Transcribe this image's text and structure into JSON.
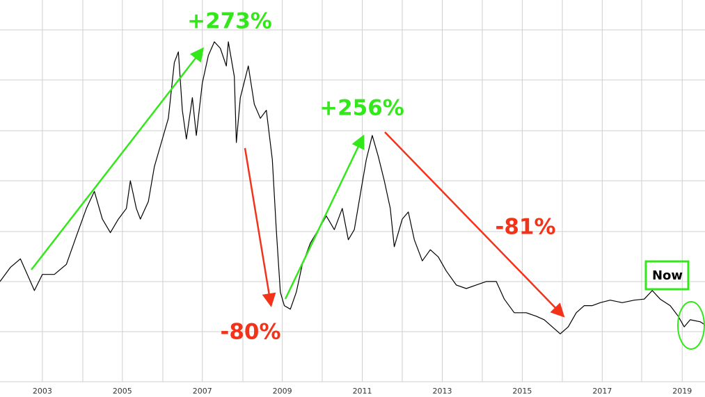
{
  "chart_data": {
    "type": "line",
    "x": [
      2001.94,
      2002.2,
      2002.45,
      2002.7,
      2002.8,
      2003.0,
      2003.3,
      2003.6,
      2003.85,
      2004.1,
      2004.3,
      2004.5,
      2004.7,
      2004.9,
      2005.1,
      2005.2,
      2005.35,
      2005.45,
      2005.65,
      2005.8,
      2005.95,
      2006.15,
      2006.3,
      2006.4,
      2006.5,
      2006.6,
      2006.75,
      2006.85,
      2007.0,
      2007.15,
      2007.3,
      2007.45,
      2007.6,
      2007.65,
      2007.8,
      2007.85,
      2007.95,
      2008.15,
      2008.3,
      2008.45,
      2008.6,
      2008.75,
      2008.85,
      2008.95,
      2009.05,
      2009.2,
      2009.35,
      2009.5,
      2009.7,
      2009.9,
      2010.1,
      2010.3,
      2010.5,
      2010.65,
      2010.8,
      2010.95,
      2011.1,
      2011.25,
      2011.4,
      2011.55,
      2011.7,
      2011.8,
      2012.0,
      2012.15,
      2012.3,
      2012.5,
      2012.7,
      2012.9,
      2013.1,
      2013.35,
      2013.6,
      2013.85,
      2014.1,
      2014.35,
      2014.55,
      2014.8,
      2015.1,
      2015.35,
      2015.55,
      2015.75,
      2015.95,
      2016.15,
      2016.35,
      2016.55,
      2016.75,
      2016.95,
      2017.2,
      2017.5,
      2017.8,
      2018.05,
      2018.25,
      2018.45,
      2018.7,
      2018.9,
      2019.05,
      2019.2,
      2019.45,
      2019.57
    ],
    "series": [
      {
        "color": "#000000",
        "values": [
          1.99,
          2.27,
          2.44,
          1.99,
          1.81,
          2.13,
          2.13,
          2.33,
          2.89,
          3.44,
          3.78,
          3.23,
          2.96,
          3.23,
          3.44,
          3.99,
          3.44,
          3.23,
          3.58,
          4.27,
          4.68,
          5.23,
          6.34,
          6.55,
          5.39,
          4.82,
          5.64,
          4.89,
          5.93,
          6.48,
          6.75,
          6.62,
          6.27,
          6.75,
          6.06,
          4.75,
          5.64,
          6.27,
          5.51,
          5.23,
          5.39,
          4.41,
          3.02,
          1.78,
          1.51,
          1.44,
          1.78,
          2.33,
          2.75,
          3.02,
          3.29,
          3.02,
          3.44,
          2.82,
          3.02,
          3.72,
          4.41,
          4.89,
          4.47,
          3.99,
          3.44,
          2.68,
          3.23,
          3.37,
          2.82,
          2.4,
          2.62,
          2.48,
          2.2,
          1.92,
          1.85,
          1.92,
          1.99,
          1.99,
          1.64,
          1.37,
          1.37,
          1.3,
          1.23,
          1.09,
          0.95,
          1.09,
          1.37,
          1.51,
          1.51,
          1.57,
          1.62,
          1.57,
          1.62,
          1.64,
          1.81,
          1.64,
          1.51,
          1.3,
          1.09,
          1.23,
          1.19,
          1.13
        ]
      }
    ],
    "xlim": [
      2001.94,
      2019.57
    ],
    "xticks": [
      2003,
      2005,
      2007,
      2009,
      2011,
      2013,
      2015,
      2017,
      2019
    ],
    "ylim": [
      0,
      7.58
    ],
    "grid": true,
    "annotations": [
      {
        "text": "+273%",
        "color": "#33e81a"
      },
      {
        "text": "-80%",
        "color": "#f2331a"
      },
      {
        "text": "+256%",
        "color": "#33e81a"
      },
      {
        "text": "-81%",
        "color": "#f2331a"
      },
      {
        "text": "Now",
        "color": "#000000"
      }
    ]
  }
}
